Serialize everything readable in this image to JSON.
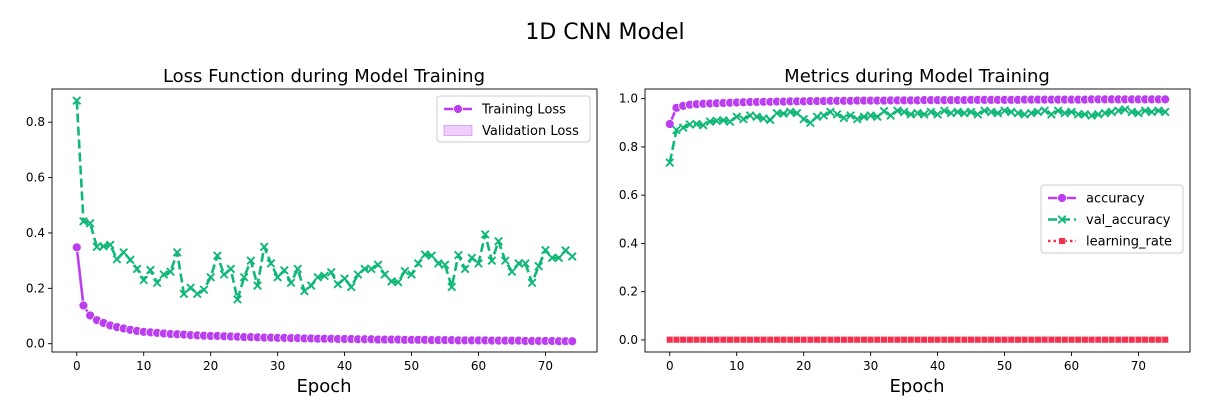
{
  "figure": {
    "title": "1D CNN Model"
  },
  "colors": {
    "purple": "#bb3ef0",
    "green": "#10b877",
    "red": "#f5304e"
  },
  "chart_data": [
    {
      "type": "line",
      "title": "Loss Function during Model Training",
      "xlabel": "Epoch",
      "ylabel": "",
      "xlim": [
        -3.7,
        77.7
      ],
      "ylim": [
        -0.03,
        0.92
      ],
      "xticks": [
        0,
        10,
        20,
        30,
        40,
        50,
        60,
        70
      ],
      "yticks": [
        0.0,
        0.2,
        0.4,
        0.6,
        0.8
      ],
      "ytick_labels": [
        "0.0",
        "0.2",
        "0.4",
        "0.6",
        "0.8"
      ],
      "legend": {
        "placement": "top-right",
        "entries": [
          {
            "label": "Training Loss",
            "style": "line-marker-o",
            "color": "#bb3ef0"
          },
          {
            "label": "Validation Loss",
            "style": "patch",
            "color": "#bb3ef0"
          }
        ]
      },
      "series": [
        {
          "name": "Training Loss",
          "color": "#bb3ef0",
          "marker": "o",
          "dash": "solid",
          "values": [
            0.348,
            0.138,
            0.102,
            0.085,
            0.075,
            0.066,
            0.06,
            0.055,
            0.05,
            0.046,
            0.043,
            0.041,
            0.039,
            0.037,
            0.035,
            0.034,
            0.033,
            0.031,
            0.03,
            0.029,
            0.028,
            0.028,
            0.027,
            0.026,
            0.025,
            0.024,
            0.024,
            0.023,
            0.022,
            0.022,
            0.021,
            0.021,
            0.02,
            0.02,
            0.019,
            0.019,
            0.018,
            0.018,
            0.018,
            0.017,
            0.017,
            0.017,
            0.016,
            0.016,
            0.016,
            0.015,
            0.015,
            0.015,
            0.015,
            0.014,
            0.014,
            0.014,
            0.014,
            0.013,
            0.013,
            0.013,
            0.013,
            0.012,
            0.012,
            0.012,
            0.012,
            0.012,
            0.011,
            0.011,
            0.011,
            0.011,
            0.011,
            0.01,
            0.01,
            0.01,
            0.01,
            0.01,
            0.009,
            0.009,
            0.009
          ]
        },
        {
          "name": "",
          "color": "#10b877",
          "marker": "x",
          "dash": "dashed",
          "values": [
            0.878,
            0.442,
            0.435,
            0.35,
            0.352,
            0.357,
            0.305,
            0.33,
            0.303,
            0.27,
            0.23,
            0.266,
            0.22,
            0.25,
            0.26,
            0.33,
            0.18,
            0.202,
            0.18,
            0.195,
            0.24,
            0.318,
            0.25,
            0.27,
            0.16,
            0.24,
            0.3,
            0.21,
            0.35,
            0.29,
            0.24,
            0.265,
            0.22,
            0.27,
            0.19,
            0.21,
            0.24,
            0.245,
            0.258,
            0.215,
            0.235,
            0.205,
            0.25,
            0.27,
            0.27,
            0.285,
            0.25,
            0.225,
            0.222,
            0.262,
            0.25,
            0.29,
            0.322,
            0.318,
            0.29,
            0.285,
            0.205,
            0.32,
            0.27,
            0.31,
            0.29,
            0.395,
            0.3,
            0.37,
            0.3,
            0.26,
            0.29,
            0.29,
            0.22,
            0.28,
            0.338,
            0.31,
            0.31,
            0.337,
            0.315
          ]
        }
      ]
    },
    {
      "type": "line",
      "title": "Metrics during Model Training",
      "xlabel": "Epoch",
      "ylabel": "",
      "xlim": [
        -3.7,
        77.7
      ],
      "ylim": [
        -0.05,
        1.04
      ],
      "xticks": [
        0,
        10,
        20,
        30,
        40,
        50,
        60,
        70
      ],
      "yticks": [
        0.0,
        0.2,
        0.4,
        0.6,
        0.8,
        1.0
      ],
      "ytick_labels": [
        "0.0",
        "0.2",
        "0.4",
        "0.6",
        "0.8",
        "1.0"
      ],
      "legend": {
        "placement": "center-right",
        "entries": [
          {
            "label": "accuracy",
            "style": "line-marker-o",
            "color": "#bb3ef0"
          },
          {
            "label": "val_accuracy",
            "style": "dashed-marker-x",
            "color": "#10b877"
          },
          {
            "label": "learning_rate",
            "style": "dotted-marker-s",
            "color": "#f5304e"
          }
        ]
      },
      "series": [
        {
          "name": "accuracy",
          "color": "#bb3ef0",
          "marker": "o",
          "dash": "solid",
          "values": [
            0.895,
            0.962,
            0.97,
            0.975,
            0.977,
            0.979,
            0.98,
            0.981,
            0.982,
            0.983,
            0.984,
            0.985,
            0.986,
            0.986,
            0.987,
            0.987,
            0.988,
            0.988,
            0.989,
            0.989,
            0.989,
            0.99,
            0.99,
            0.99,
            0.991,
            0.991,
            0.991,
            0.991,
            0.992,
            0.992,
            0.992,
            0.992,
            0.992,
            0.993,
            0.993,
            0.993,
            0.993,
            0.993,
            0.994,
            0.994,
            0.994,
            0.994,
            0.994,
            0.994,
            0.994,
            0.995,
            0.995,
            0.995,
            0.995,
            0.995,
            0.995,
            0.995,
            0.995,
            0.996,
            0.996,
            0.996,
            0.996,
            0.996,
            0.996,
            0.996,
            0.996,
            0.996,
            0.996,
            0.997,
            0.997,
            0.997,
            0.997,
            0.997,
            0.997,
            0.997,
            0.997,
            0.997,
            0.997,
            0.997,
            0.997
          ]
        },
        {
          "name": "val_accuracy",
          "color": "#10b877",
          "marker": "x",
          "dash": "dashed",
          "values": [
            0.735,
            0.87,
            0.88,
            0.893,
            0.895,
            0.89,
            0.905,
            0.908,
            0.91,
            0.905,
            0.925,
            0.915,
            0.93,
            0.925,
            0.918,
            0.912,
            0.94,
            0.938,
            0.945,
            0.94,
            0.915,
            0.9,
            0.925,
            0.93,
            0.945,
            0.935,
            0.92,
            0.93,
            0.915,
            0.925,
            0.93,
            0.925,
            0.948,
            0.93,
            0.95,
            0.945,
            0.935,
            0.94,
            0.935,
            0.945,
            0.935,
            0.95,
            0.94,
            0.945,
            0.94,
            0.945,
            0.935,
            0.95,
            0.945,
            0.94,
            0.95,
            0.945,
            0.94,
            0.935,
            0.94,
            0.945,
            0.95,
            0.935,
            0.95,
            0.94,
            0.945,
            0.935,
            0.935,
            0.93,
            0.935,
            0.94,
            0.945,
            0.95,
            0.955,
            0.945,
            0.94,
            0.95,
            0.945,
            0.95,
            0.945
          ]
        },
        {
          "name": "learning_rate",
          "color": "#f5304e",
          "marker": "s",
          "dash": "dotted",
          "values": [
            0.001,
            0.001,
            0.001,
            0.001,
            0.001,
            0.001,
            0.001,
            0.001,
            0.001,
            0.001,
            0.001,
            0.001,
            0.001,
            0.001,
            0.001,
            0.001,
            0.001,
            0.001,
            0.001,
            0.001,
            0.001,
            0.001,
            0.001,
            0.001,
            0.001,
            0.001,
            0.001,
            0.001,
            0.001,
            0.001,
            0.001,
            0.001,
            0.001,
            0.001,
            0.001,
            0.001,
            0.001,
            0.001,
            0.001,
            0.001,
            0.001,
            0.001,
            0.001,
            0.001,
            0.001,
            0.001,
            0.001,
            0.001,
            0.001,
            0.001,
            0.001,
            0.001,
            0.001,
            0.001,
            0.001,
            0.001,
            0.001,
            0.001,
            0.001,
            0.001,
            0.001,
            0.001,
            0.001,
            0.001,
            0.001,
            0.001,
            0.001,
            0.001,
            0.001,
            0.001,
            0.001,
            0.001,
            0.001,
            0.001,
            0.001
          ]
        }
      ]
    }
  ]
}
